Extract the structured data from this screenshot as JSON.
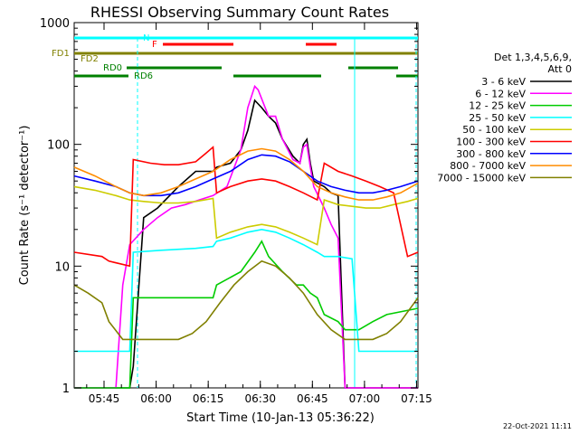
{
  "chart_data": {
    "type": "line",
    "title": "RHESSI Observing Summary Count Rates",
    "xlabel": "Start Time (10-Jan-13 05:36:22)",
    "ylabel": "Count Rate (s⁻¹ detector⁻¹)",
    "yscale": "log",
    "ylim": [
      1,
      1000
    ],
    "xlim": [
      0,
      99
    ],
    "x_unit": "minutes since 05:36:22",
    "x_ticks": [
      {
        "label": "05:45",
        "x": 8.6
      },
      {
        "label": "06:00",
        "x": 23.6
      },
      {
        "label": "06:15",
        "x": 38.6
      },
      {
        "label": "06:30",
        "x": 53.6
      },
      {
        "label": "06:45",
        "x": 68.6
      },
      {
        "label": "07:00",
        "x": 83.6
      },
      {
        "label": "07:15",
        "x": 98.6
      }
    ],
    "y_ticks": [
      {
        "label": "1",
        "y": 1
      },
      {
        "label": "10",
        "y": 10
      },
      {
        "label": "100",
        "y": 100
      },
      {
        "label": "1000",
        "y": 1000
      }
    ],
    "legend_header": [
      "Det 1,3,4,5,6,9,",
      "Att 0"
    ],
    "legend_position": "right",
    "series": [
      {
        "name": "3 - 6 keV",
        "color": "#000000",
        "x": [
          0,
          16,
          17,
          20,
          24,
          30,
          35,
          40,
          41,
          45,
          48,
          50,
          52,
          54,
          56,
          58,
          60,
          63,
          65,
          66,
          67,
          68,
          69,
          72,
          74,
          76,
          78,
          80,
          99
        ],
        "y": [
          0,
          0,
          1.5,
          25,
          30,
          45,
          60,
          60,
          65,
          70,
          90,
          130,
          230,
          200,
          170,
          150,
          110,
          80,
          70,
          100,
          110,
          70,
          50,
          45,
          40,
          38,
          0,
          0,
          0
        ]
      },
      {
        "name": "6 - 12 keV",
        "color": "#ff00ff",
        "x": [
          0,
          12,
          14,
          16,
          20,
          24,
          28,
          32,
          36,
          40,
          44,
          48,
          50,
          52,
          53,
          55,
          56,
          58,
          60,
          63,
          65,
          66,
          67,
          68,
          69,
          72,
          74,
          76,
          78,
          80,
          99
        ],
        "y": [
          0,
          0,
          7,
          15,
          20,
          25,
          30,
          32,
          35,
          38,
          45,
          90,
          200,
          300,
          280,
          200,
          170,
          170,
          110,
          75,
          70,
          95,
          100,
          65,
          45,
          30,
          22,
          17,
          0,
          0,
          0
        ]
      },
      {
        "name": "12 - 25 keV",
        "color": "#00cc00",
        "x": [
          0,
          16,
          17,
          30,
          40,
          41,
          48,
          52,
          54,
          56,
          60,
          64,
          66,
          68,
          70,
          72,
          76,
          78,
          80,
          82,
          86,
          90,
          99
        ],
        "y": [
          0,
          0,
          5.5,
          5.5,
          5.5,
          7,
          9,
          13,
          16,
          12,
          9,
          7,
          7,
          6,
          5.5,
          4,
          3.5,
          3,
          3,
          3,
          3.5,
          4,
          4.5
        ]
      },
      {
        "name": "25 - 50 keV",
        "color": "#00ffff",
        "x": [
          0,
          8,
          10,
          16,
          17,
          25,
          35,
          40,
          41,
          45,
          50,
          54,
          58,
          62,
          66,
          70,
          72,
          76,
          80,
          82,
          86,
          90,
          99
        ],
        "y": [
          2,
          2,
          2,
          2,
          13,
          13.5,
          14,
          14.5,
          16,
          17,
          19,
          20,
          19,
          17,
          15,
          13,
          12,
          12,
          11.5,
          2,
          2,
          2,
          2
        ]
      },
      {
        "name": "50 - 100 keV",
        "color": "#cccc00",
        "x": [
          0,
          6,
          12,
          16,
          20,
          25,
          30,
          35,
          40,
          41,
          45,
          50,
          54,
          58,
          62,
          66,
          70,
          72,
          76,
          80,
          84,
          88,
          92,
          96,
          99
        ],
        "y": [
          45,
          42,
          38,
          35,
          34,
          33,
          33,
          34,
          36,
          17,
          19,
          21,
          22,
          21,
          19,
          17,
          15,
          35,
          32,
          31,
          30,
          30,
          32,
          34,
          36
        ]
      },
      {
        "name": "100 - 300 keV",
        "color": "#ff0000",
        "x": [
          0,
          8,
          10,
          16,
          17,
          22,
          26,
          30,
          35,
          38,
          40,
          41,
          45,
          50,
          54,
          58,
          62,
          66,
          70,
          72,
          76,
          80,
          84,
          88,
          92,
          96,
          99
        ],
        "y": [
          13,
          12,
          11,
          10,
          75,
          70,
          68,
          68,
          72,
          85,
          95,
          40,
          45,
          50,
          52,
          50,
          45,
          40,
          35,
          70,
          60,
          55,
          50,
          45,
          40,
          12,
          13
        ]
      },
      {
        "name": "300 - 800 keV",
        "color": "#0000ff",
        "x": [
          0,
          6,
          12,
          16,
          20,
          25,
          30,
          35,
          40,
          45,
          50,
          54,
          58,
          62,
          66,
          70,
          74,
          78,
          82,
          86,
          90,
          94,
          99
        ],
        "y": [
          55,
          50,
          45,
          40,
          38,
          38,
          40,
          45,
          52,
          60,
          75,
          82,
          80,
          72,
          60,
          50,
          45,
          42,
          40,
          40,
          42,
          45,
          50
        ]
      },
      {
        "name": "800 - 7000 keV",
        "color": "#ff8c00",
        "x": [
          0,
          6,
          12,
          16,
          20,
          25,
          30,
          35,
          40,
          45,
          50,
          54,
          58,
          62,
          66,
          70,
          74,
          78,
          82,
          86,
          90,
          94,
          99
        ],
        "y": [
          65,
          55,
          45,
          40,
          38,
          40,
          45,
          52,
          60,
          75,
          88,
          92,
          88,
          75,
          60,
          45,
          40,
          37,
          35,
          35,
          37,
          40,
          48
        ]
      },
      {
        "name": "7000 - 15000 keV",
        "color": "#808000",
        "x": [
          0,
          4,
          8,
          10,
          14,
          18,
          22,
          26,
          30,
          34,
          38,
          42,
          46,
          50,
          54,
          58,
          62,
          66,
          70,
          74,
          78,
          82,
          86,
          90,
          94,
          99
        ],
        "y": [
          7,
          6,
          5,
          3.5,
          2.5,
          2.5,
          2.5,
          2.5,
          2.5,
          2.8,
          3.5,
          5,
          7,
          9,
          11,
          10,
          8,
          6,
          4,
          3,
          2.5,
          2.5,
          2.5,
          2.8,
          3.5,
          5.5
        ]
      }
    ],
    "state_labels": [
      {
        "label": "FD1",
        "color": "#808000"
      },
      {
        "label": "FD2",
        "color": "#808000"
      },
      {
        "label": "N",
        "color": "#00ffff"
      },
      {
        "label": "F",
        "color": "#ff0000"
      },
      {
        "label": "RD0",
        "color": "#008000"
      },
      {
        "label": "RD6",
        "color": "#008000"
      }
    ]
  },
  "footer": {
    "timestamp": "22-Oct-2021 11:11"
  }
}
